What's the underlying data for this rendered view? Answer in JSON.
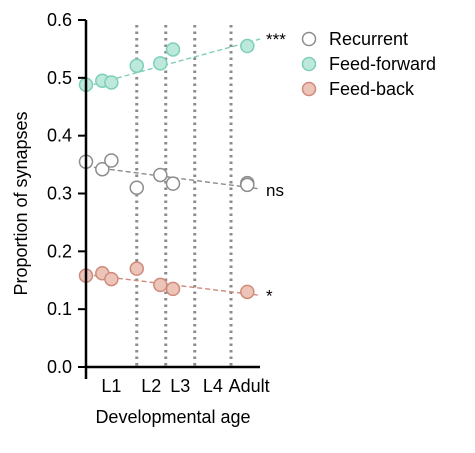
{
  "chart_data": {
    "type": "scatter",
    "title": "",
    "xlabel": "Developmental age",
    "ylabel": "Proportion of synapses",
    "ylim": [
      0,
      0.6
    ],
    "yticks": [
      0.0,
      0.1,
      0.2,
      0.3,
      0.4,
      0.5,
      0.6
    ],
    "ytick_labels": [
      "0.0",
      "0.1",
      "0.2",
      "0.3",
      "0.4",
      "0.5",
      "0.6"
    ],
    "xlim": [
      0,
      48
    ],
    "x_unit": "hours",
    "stage_lines": [
      14,
      22,
      30,
      40
    ],
    "stage_labels": [
      {
        "label": "L1",
        "x": 7
      },
      {
        "label": "L2",
        "x": 18
      },
      {
        "label": "L3",
        "x": 26
      },
      {
        "label": "L4",
        "x": 35
      },
      {
        "label": "Adult",
        "x": 45
      }
    ],
    "grid": false,
    "legend_position": "top-right",
    "series": [
      {
        "name": "Recurrent",
        "stroke": "#8c8c8c",
        "fill": "#ffffff",
        "points": [
          {
            "x": 0,
            "y": 0.355
          },
          {
            "x": 4.5,
            "y": 0.342
          },
          {
            "x": 7,
            "y": 0.357
          },
          {
            "x": 14,
            "y": 0.31
          },
          {
            "x": 20.5,
            "y": 0.332
          },
          {
            "x": 24,
            "y": 0.317
          },
          {
            "x": 44.5,
            "y": 0.318
          },
          {
            "x": 44.5,
            "y": 0.315
          }
        ],
        "trend": [
          {
            "x": 0,
            "y": 0.347
          },
          {
            "x": 48,
            "y": 0.308
          }
        ],
        "significance": "ns"
      },
      {
        "name": "Feed-forward",
        "stroke": "#7dcfb8",
        "fill": "#bde8dc",
        "points": [
          {
            "x": 0,
            "y": 0.488
          },
          {
            "x": 4.5,
            "y": 0.495
          },
          {
            "x": 7,
            "y": 0.492
          },
          {
            "x": 14,
            "y": 0.521
          },
          {
            "x": 20.5,
            "y": 0.525
          },
          {
            "x": 24,
            "y": 0.549
          },
          {
            "x": 44.5,
            "y": 0.555
          }
        ],
        "trend": [
          {
            "x": 0,
            "y": 0.485
          },
          {
            "x": 48,
            "y": 0.567
          }
        ],
        "significance": "***"
      },
      {
        "name": "Feed-back",
        "stroke": "#d08a7a",
        "fill": "#ecc4b8",
        "points": [
          {
            "x": 0,
            "y": 0.158
          },
          {
            "x": 4.5,
            "y": 0.162
          },
          {
            "x": 7,
            "y": 0.152
          },
          {
            "x": 14,
            "y": 0.17
          },
          {
            "x": 20.5,
            "y": 0.142
          },
          {
            "x": 24,
            "y": 0.135
          },
          {
            "x": 44.5,
            "y": 0.13
          }
        ],
        "trend": [
          {
            "x": 0,
            "y": 0.16
          },
          {
            "x": 48,
            "y": 0.124
          }
        ],
        "significance": "*"
      }
    ]
  }
}
